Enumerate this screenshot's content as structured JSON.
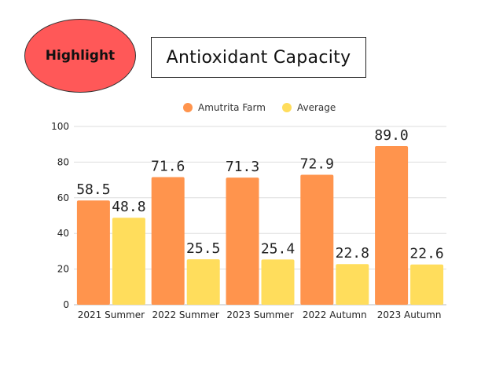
{
  "badge": {
    "label": "Highlight",
    "color": "#ff5858"
  },
  "chart_data": {
    "type": "bar",
    "title": "Antioxidant Capacity",
    "categories": [
      "2021 Summer",
      "2022 Summer",
      "2023 Summer",
      "2022 Autumn",
      "2023 Autumn"
    ],
    "series": [
      {
        "name": "Amutrita Farm",
        "color": "#ff944d",
        "values": [
          58.5,
          71.6,
          71.3,
          72.9,
          89.0
        ]
      },
      {
        "name": "Average",
        "color": "#ffdd5c",
        "values": [
          48.8,
          25.5,
          25.4,
          22.8,
          22.6
        ]
      }
    ],
    "ylim": [
      0,
      100
    ],
    "yticks": [
      0,
      20,
      40,
      60,
      80,
      100
    ],
    "grid": true,
    "legend_position": "top"
  }
}
